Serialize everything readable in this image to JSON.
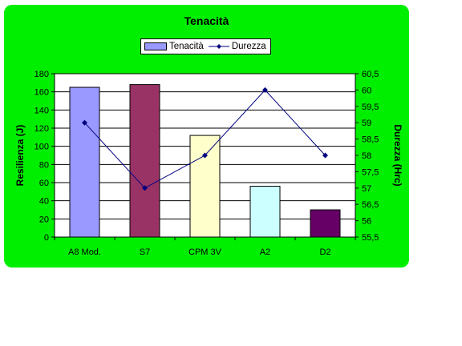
{
  "chart_data": {
    "type": "bar",
    "title": "Tenacità",
    "categories": [
      "A8 Mod.",
      "S7",
      "CPM 3V",
      "A2",
      "D2"
    ],
    "series": [
      {
        "name": "Tenacità",
        "type": "bar",
        "axis": "left",
        "values": [
          165,
          168,
          112,
          56,
          30
        ],
        "colors": [
          "#9999ff",
          "#993366",
          "#ffffcc",
          "#ccffff",
          "#660066"
        ]
      },
      {
        "name": "Durezza",
        "type": "line",
        "axis": "right",
        "values": [
          59,
          57,
          58,
          60,
          58
        ],
        "color": "#000080"
      }
    ],
    "ylabel": "Resilienza (J)",
    "y2label": "Durezza (Hrc)",
    "ylim": [
      0,
      180
    ],
    "y2lim": [
      55.5,
      60.5
    ],
    "yticks": [
      "0",
      "20",
      "40",
      "60",
      "80",
      "100",
      "120",
      "140",
      "160",
      "180"
    ],
    "y2ticks": [
      "55,5",
      "56",
      "56,5",
      "57",
      "57,5",
      "58",
      "58,5",
      "59",
      "59,5",
      "60",
      "60,5"
    ],
    "grid": true,
    "legend": "top"
  },
  "colors": {
    "chart_background": "#00ee00",
    "plot_background": "#ffffff",
    "gridline": "#000000"
  }
}
